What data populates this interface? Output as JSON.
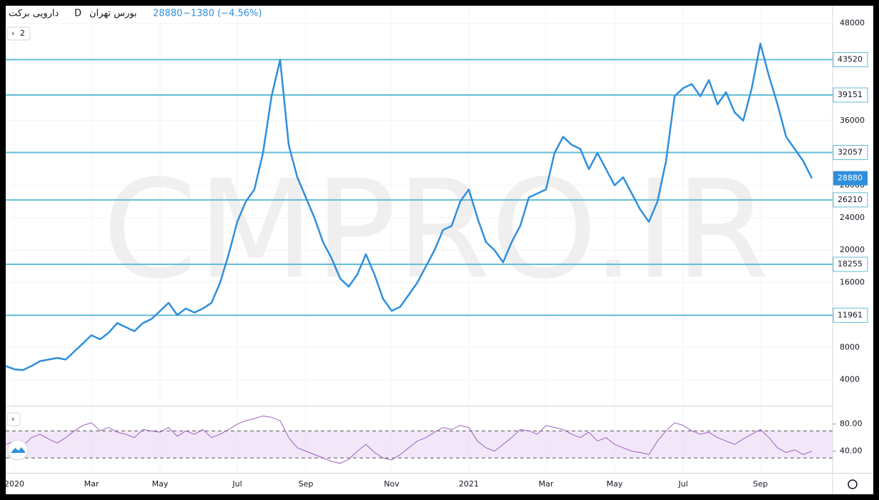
{
  "legend": {
    "symbol": "دارویی برکت",
    "interval": "D",
    "exchange": "بورس تهران",
    "price": "28880",
    "change": "−1380 (−4.56%)",
    "collapse": "2"
  },
  "watermark": "CMPRO.IR",
  "chart_data": [
    {
      "type": "line",
      "color": "#2f8fdd",
      "level_color": "#63bdd6",
      "last_color": "#2f8fdd",
      "categories": [
        null,
        "2020",
        null,
        null,
        null,
        null,
        null,
        null,
        null,
        null,
        "Mar",
        null,
        null,
        null,
        null,
        null,
        null,
        null,
        "May",
        null,
        null,
        null,
        null,
        null,
        null,
        null,
        null,
        "Jul",
        null,
        null,
        null,
        null,
        null,
        null,
        null,
        "Sep",
        null,
        null,
        null,
        null,
        null,
        null,
        null,
        null,
        null,
        "Nov",
        null,
        null,
        null,
        null,
        null,
        null,
        null,
        null,
        "2021",
        null,
        null,
        null,
        null,
        null,
        null,
        null,
        null,
        "Mar",
        null,
        null,
        null,
        null,
        null,
        null,
        null,
        "May",
        null,
        null,
        null,
        null,
        null,
        null,
        null,
        "Jul",
        null,
        null,
        null,
        null,
        null,
        null,
        null,
        null,
        "Sep",
        null,
        null,
        null,
        null,
        null,
        null
      ],
      "values": [
        5700,
        5300,
        5200,
        5700,
        6300,
        6500,
        6700,
        6500,
        7500,
        8500,
        9500,
        9000,
        9800,
        11000,
        10500,
        10000,
        11000,
        11500,
        12500,
        13500,
        12000,
        12800,
        12300,
        12800,
        13500,
        16000,
        19500,
        23500,
        26000,
        27500,
        32000,
        39000,
        43500,
        33000,
        29000,
        26500,
        24000,
        21000,
        19000,
        16500,
        15500,
        17000,
        19500,
        17000,
        14000,
        12500,
        13000,
        14500,
        16000,
        18000,
        20000,
        22500,
        23000,
        26000,
        27500,
        24000,
        21000,
        20000,
        18500,
        21000,
        23000,
        26500,
        27000,
        27500,
        32000,
        34000,
        33000,
        32500,
        30000,
        32000,
        30000,
        28000,
        29000,
        27000,
        25000,
        23500,
        26000,
        31000,
        39000,
        40000,
        40500,
        39000,
        41000,
        38000,
        39500,
        37000,
        36000,
        40000,
        45500,
        41500,
        38000,
        34000,
        32500,
        31000,
        28880
      ],
      "levels": [
        43520,
        39151,
        32057,
        26210,
        18255,
        11961
      ],
      "last": 28880,
      "ylim": [
        800,
        50000
      ],
      "yticks": [
        4000,
        8000,
        16000,
        20000,
        24000,
        28000,
        36000,
        48000
      ],
      "grid": true
    },
    {
      "type": "line",
      "color": "#9c5fbf",
      "band": [
        30,
        70
      ],
      "band_color": "#e9d7f3",
      "values": [
        50,
        55,
        48,
        60,
        65,
        58,
        52,
        60,
        70,
        78,
        82,
        70,
        75,
        68,
        65,
        60,
        72,
        70,
        68,
        75,
        62,
        70,
        65,
        72,
        60,
        65,
        72,
        80,
        85,
        88,
        92,
        90,
        85,
        60,
        45,
        40,
        35,
        30,
        25,
        22,
        28,
        40,
        50,
        38,
        30,
        27,
        35,
        45,
        55,
        60,
        68,
        75,
        72,
        78,
        75,
        55,
        45,
        40,
        50,
        60,
        72,
        70,
        65,
        78,
        75,
        72,
        65,
        60,
        68,
        55,
        60,
        50,
        45,
        40,
        38,
        35,
        55,
        70,
        82,
        78,
        70,
        65,
        68,
        60,
        55,
        50,
        58,
        65,
        72,
        60,
        45,
        38,
        42,
        35,
        40
      ],
      "ylim": [
        8,
        105
      ],
      "yticks": [
        {
          "value": 40,
          "label": "40.00"
        },
        {
          "value": 80,
          "label": "80.00"
        }
      ]
    }
  ]
}
